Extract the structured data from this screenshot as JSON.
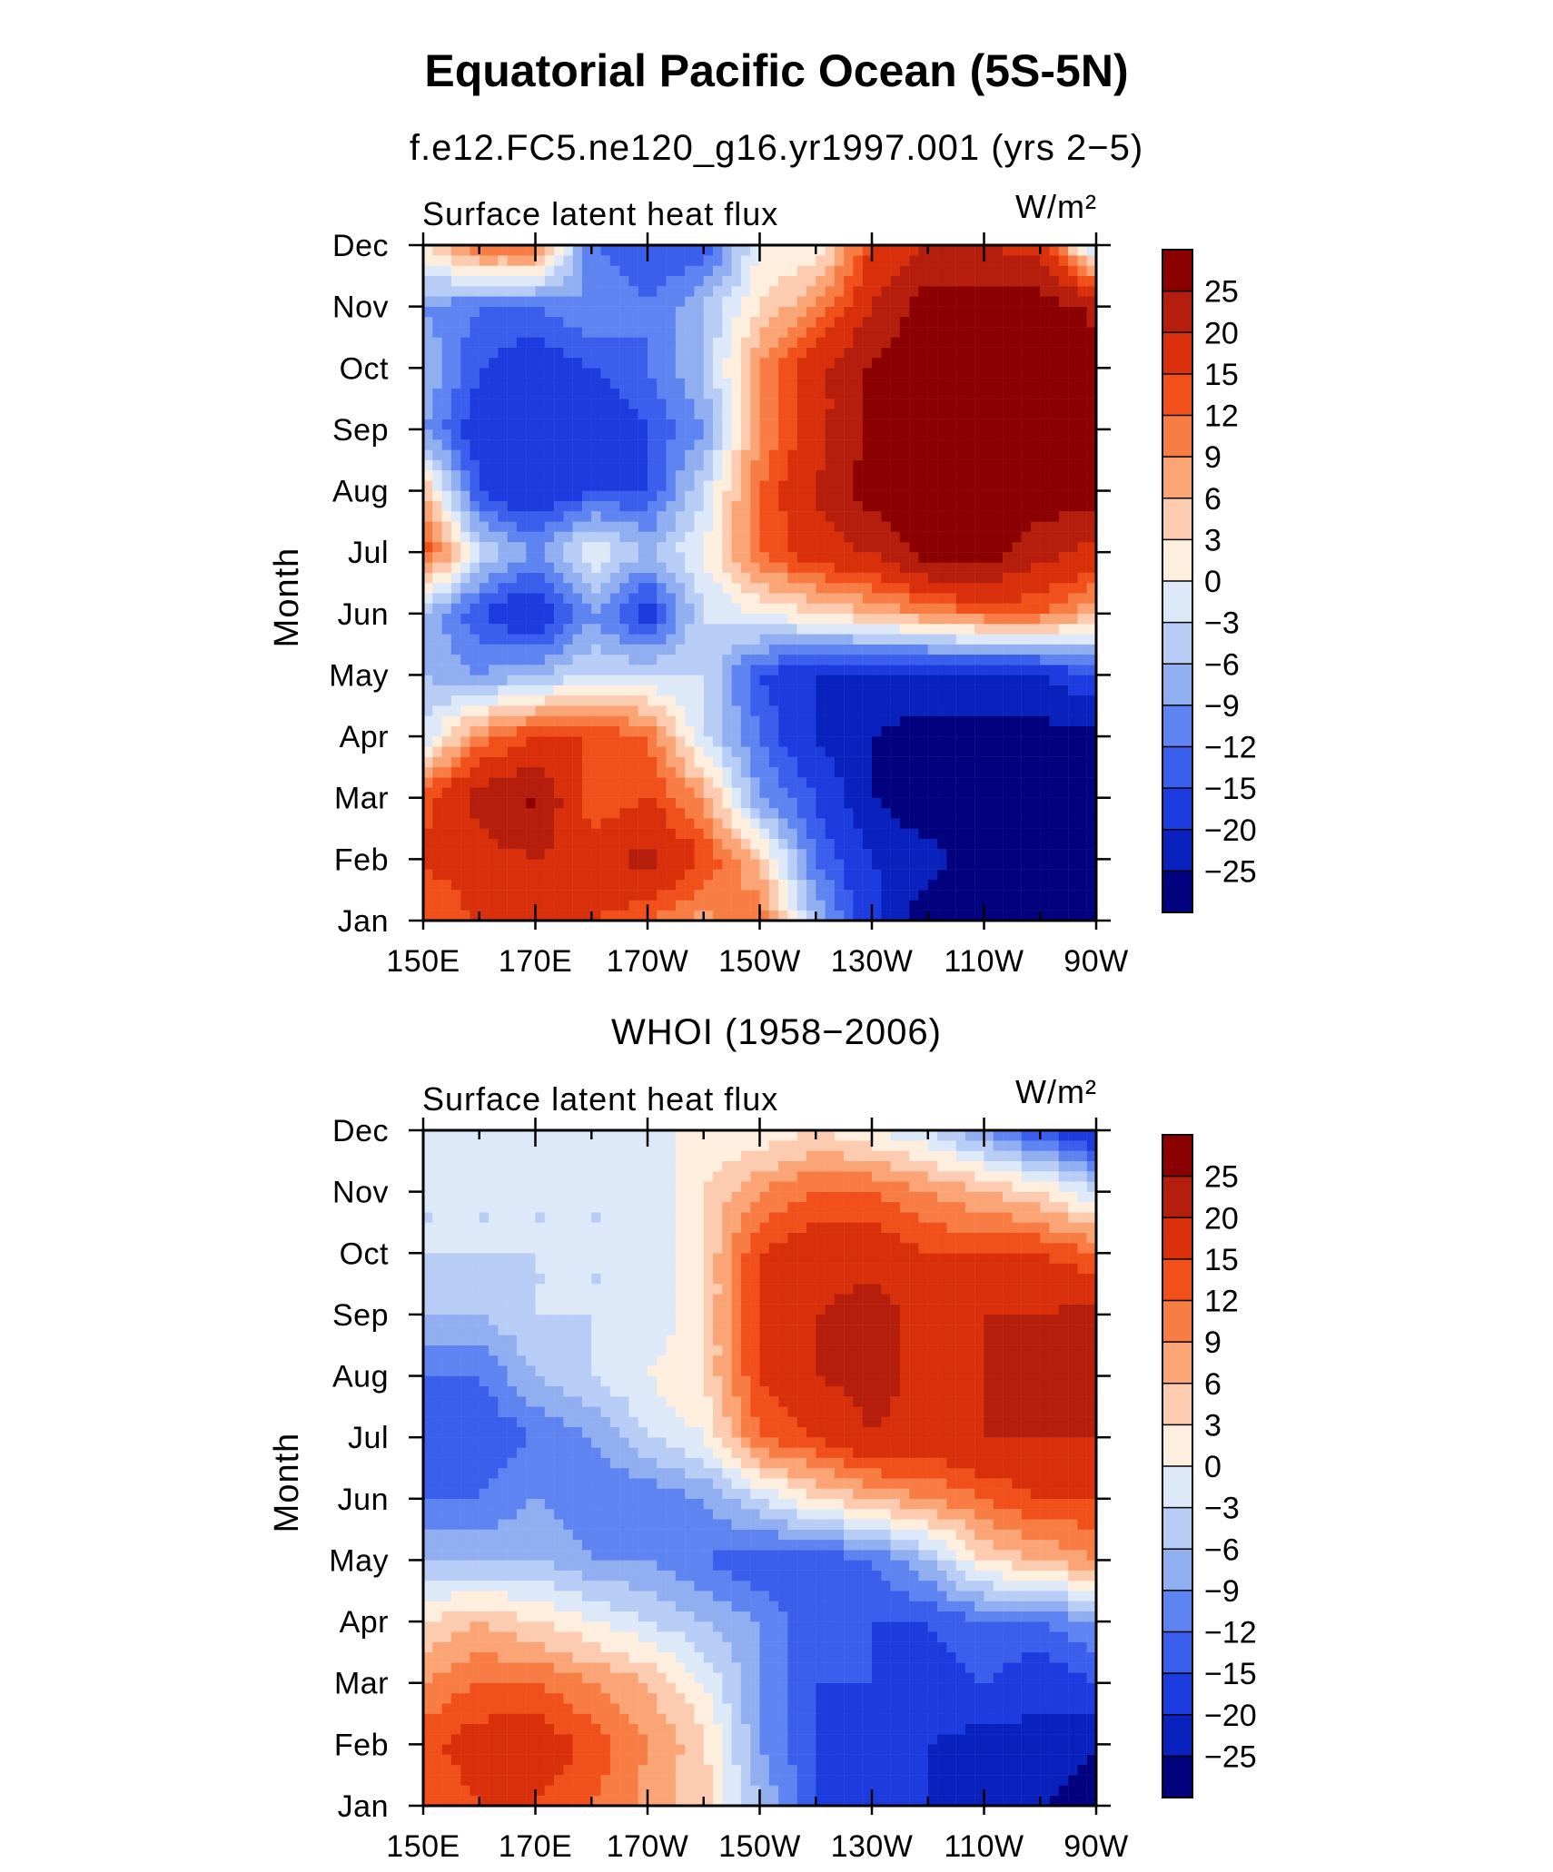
{
  "figure": {
    "title": "Equatorial Pacific Ocean (5S-5N)"
  },
  "chart_data": [
    {
      "type": "heatmap",
      "title": "f.e12.FC5.ne120_g16.yr1997.001 (yrs 2−5)",
      "left_label": "Surface latent heat flux",
      "right_label": "W/m²",
      "ylabel": "Month",
      "x_ticks": [
        "150E",
        "170E",
        "170W",
        "150W",
        "130W",
        "110W",
        "90W"
      ],
      "y_ticks": [
        "Jan",
        "Feb",
        "Mar",
        "Apr",
        "May",
        "Jun",
        "Jul",
        "Aug",
        "Sep",
        "Oct",
        "Nov",
        "Dec"
      ],
      "colorbar": {
        "labels": [
          "25",
          "20",
          "15",
          "12",
          "9",
          "6",
          "3",
          "0",
          "−3",
          "−6",
          "−9",
          "−12",
          "−15",
          "−20",
          "−25"
        ],
        "colors": [
          "#8b0000",
          "#b51d0c",
          "#d9300b",
          "#f2501a",
          "#f77d45",
          "#fba577",
          "#fdcbb0",
          "#fdeede",
          "#dde9f8",
          "#b7cdf5",
          "#90aef0",
          "#5d84f0",
          "#3a5fec",
          "#1c3ce0",
          "#0a22bd",
          "#02027f"
        ]
      },
      "grid": {
        "months": [
          "Jan",
          "Feb",
          "Mar",
          "Apr",
          "May",
          "Jun",
          "Jul",
          "Aug",
          "Sep",
          "Oct",
          "Nov",
          "Dec"
        ],
        "lons": [
          "150E",
          "160E",
          "170E",
          "180",
          "170W",
          "160W",
          "150W",
          "140W",
          "130W",
          "120W",
          "110W",
          "100W",
          "90W"
        ],
        "values": [
          [
            12,
            15,
            18,
            15,
            12,
            8,
            12,
            -6,
            -18,
            -30,
            -30,
            -30,
            -30
          ],
          [
            15,
            18,
            20,
            18,
            22,
            15,
            5,
            -12,
            -20,
            -22,
            -30,
            -30,
            -30
          ],
          [
            14,
            22,
            26,
            12,
            15,
            8,
            -9,
            -15,
            -25,
            -30,
            -30,
            -30,
            -30
          ],
          [
            -3,
            10,
            15,
            15,
            12,
            -3,
            -12,
            -20,
            -25,
            -27,
            -27,
            -27,
            -27
          ],
          [
            -6,
            -9,
            -6,
            -3,
            -3,
            -3,
            -15,
            -20,
            -22,
            -22,
            -22,
            -20,
            -15
          ],
          [
            -6,
            -15,
            -20,
            -9,
            -18,
            -3,
            0,
            3,
            6,
            9,
            12,
            12,
            6
          ],
          [
            15,
            -3,
            -9,
            0,
            -6,
            0,
            12,
            18,
            20,
            28,
            28,
            22,
            18
          ],
          [
            6,
            -15,
            -20,
            -15,
            -15,
            -3,
            12,
            20,
            28,
            28,
            28,
            28,
            28
          ],
          [
            -9,
            -18,
            -20,
            -20,
            -15,
            -9,
            9,
            18,
            26,
            28,
            28,
            28,
            28
          ],
          [
            -6,
            -15,
            -18,
            -15,
            -12,
            -6,
            9,
            18,
            26,
            28,
            28,
            28,
            26
          ],
          [
            -9,
            -12,
            -12,
            -9,
            -12,
            -6,
            3,
            9,
            20,
            28,
            28,
            28,
            24
          ],
          [
            3,
            12,
            12,
            -12,
            -15,
            -15,
            0,
            0,
            15,
            20,
            20,
            18,
            -6
          ]
        ]
      }
    },
    {
      "type": "heatmap",
      "title": "WHOI (1958−2006)",
      "left_label": "Surface latent heat flux",
      "right_label": "W/m²",
      "ylabel": "Month",
      "x_ticks": [
        "150E",
        "170E",
        "170W",
        "150W",
        "130W",
        "110W",
        "90W"
      ],
      "y_ticks": [
        "Jan",
        "Feb",
        "Mar",
        "Apr",
        "May",
        "Jun",
        "Jul",
        "Aug",
        "Sep",
        "Oct",
        "Nov",
        "Dec"
      ],
      "colorbar": {
        "labels": [
          "25",
          "20",
          "15",
          "12",
          "9",
          "6",
          "3",
          "0",
          "−3",
          "−6",
          "−9",
          "−12",
          "−15",
          "−20",
          "−25"
        ],
        "colors": [
          "#8b0000",
          "#b51d0c",
          "#d9300b",
          "#f2501a",
          "#f77d45",
          "#fba577",
          "#fdcbb0",
          "#fdeede",
          "#dde9f8",
          "#b7cdf5",
          "#90aef0",
          "#5d84f0",
          "#3a5fec",
          "#1c3ce0",
          "#0a22bd",
          "#02027f"
        ]
      },
      "grid": {
        "months": [
          "Jan",
          "Feb",
          "Mar",
          "Apr",
          "May",
          "Jun",
          "Jul",
          "Aug",
          "Sep",
          "Oct",
          "Nov",
          "Dec"
        ],
        "lons": [
          "150E",
          "160E",
          "170E",
          "180",
          "170W",
          "160W",
          "150W",
          "140W",
          "130W",
          "120W",
          "110W",
          "100W",
          "90W"
        ],
        "values": [
          [
            12,
            15,
            15,
            12,
            8,
            4,
            -6,
            -15,
            -20,
            -20,
            -22,
            -25,
            -28
          ],
          [
            14,
            17,
            18,
            14,
            9,
            4,
            -9,
            -15,
            -18,
            -20,
            -22,
            -22,
            -25
          ],
          [
            9,
            12,
            12,
            9,
            6,
            0,
            -9,
            -15,
            -15,
            -18,
            -15,
            -18,
            -15
          ],
          [
            3,
            6,
            3,
            0,
            -3,
            -6,
            -9,
            -15,
            -15,
            -15,
            -12,
            -12,
            -9
          ],
          [
            -6,
            -6,
            -6,
            -9,
            -9,
            -12,
            -15,
            -15,
            -12,
            -6,
            3,
            6,
            9
          ],
          [
            -12,
            -12,
            -9,
            -12,
            -12,
            -9,
            -3,
            3,
            6,
            9,
            12,
            15,
            15
          ],
          [
            -15,
            -15,
            -12,
            -9,
            -3,
            0,
            12,
            15,
            20,
            18,
            20,
            20,
            20
          ],
          [
            -12,
            -12,
            -6,
            -3,
            0,
            3,
            15,
            20,
            22,
            18,
            20,
            22,
            22
          ],
          [
            -6,
            -6,
            -3,
            -3,
            -3,
            3,
            15,
            20,
            22,
            18,
            20,
            20,
            22
          ],
          [
            -3,
            -3,
            -3,
            -3,
            -3,
            3,
            15,
            18,
            18,
            15,
            15,
            15,
            12
          ],
          [
            -3,
            -3,
            -3,
            -3,
            -3,
            3,
            9,
            12,
            12,
            9,
            6,
            3,
            -3
          ],
          [
            0,
            0,
            0,
            0,
            0,
            0,
            0,
            3,
            0,
            -3,
            -9,
            -15,
            -20
          ]
        ]
      }
    }
  ]
}
